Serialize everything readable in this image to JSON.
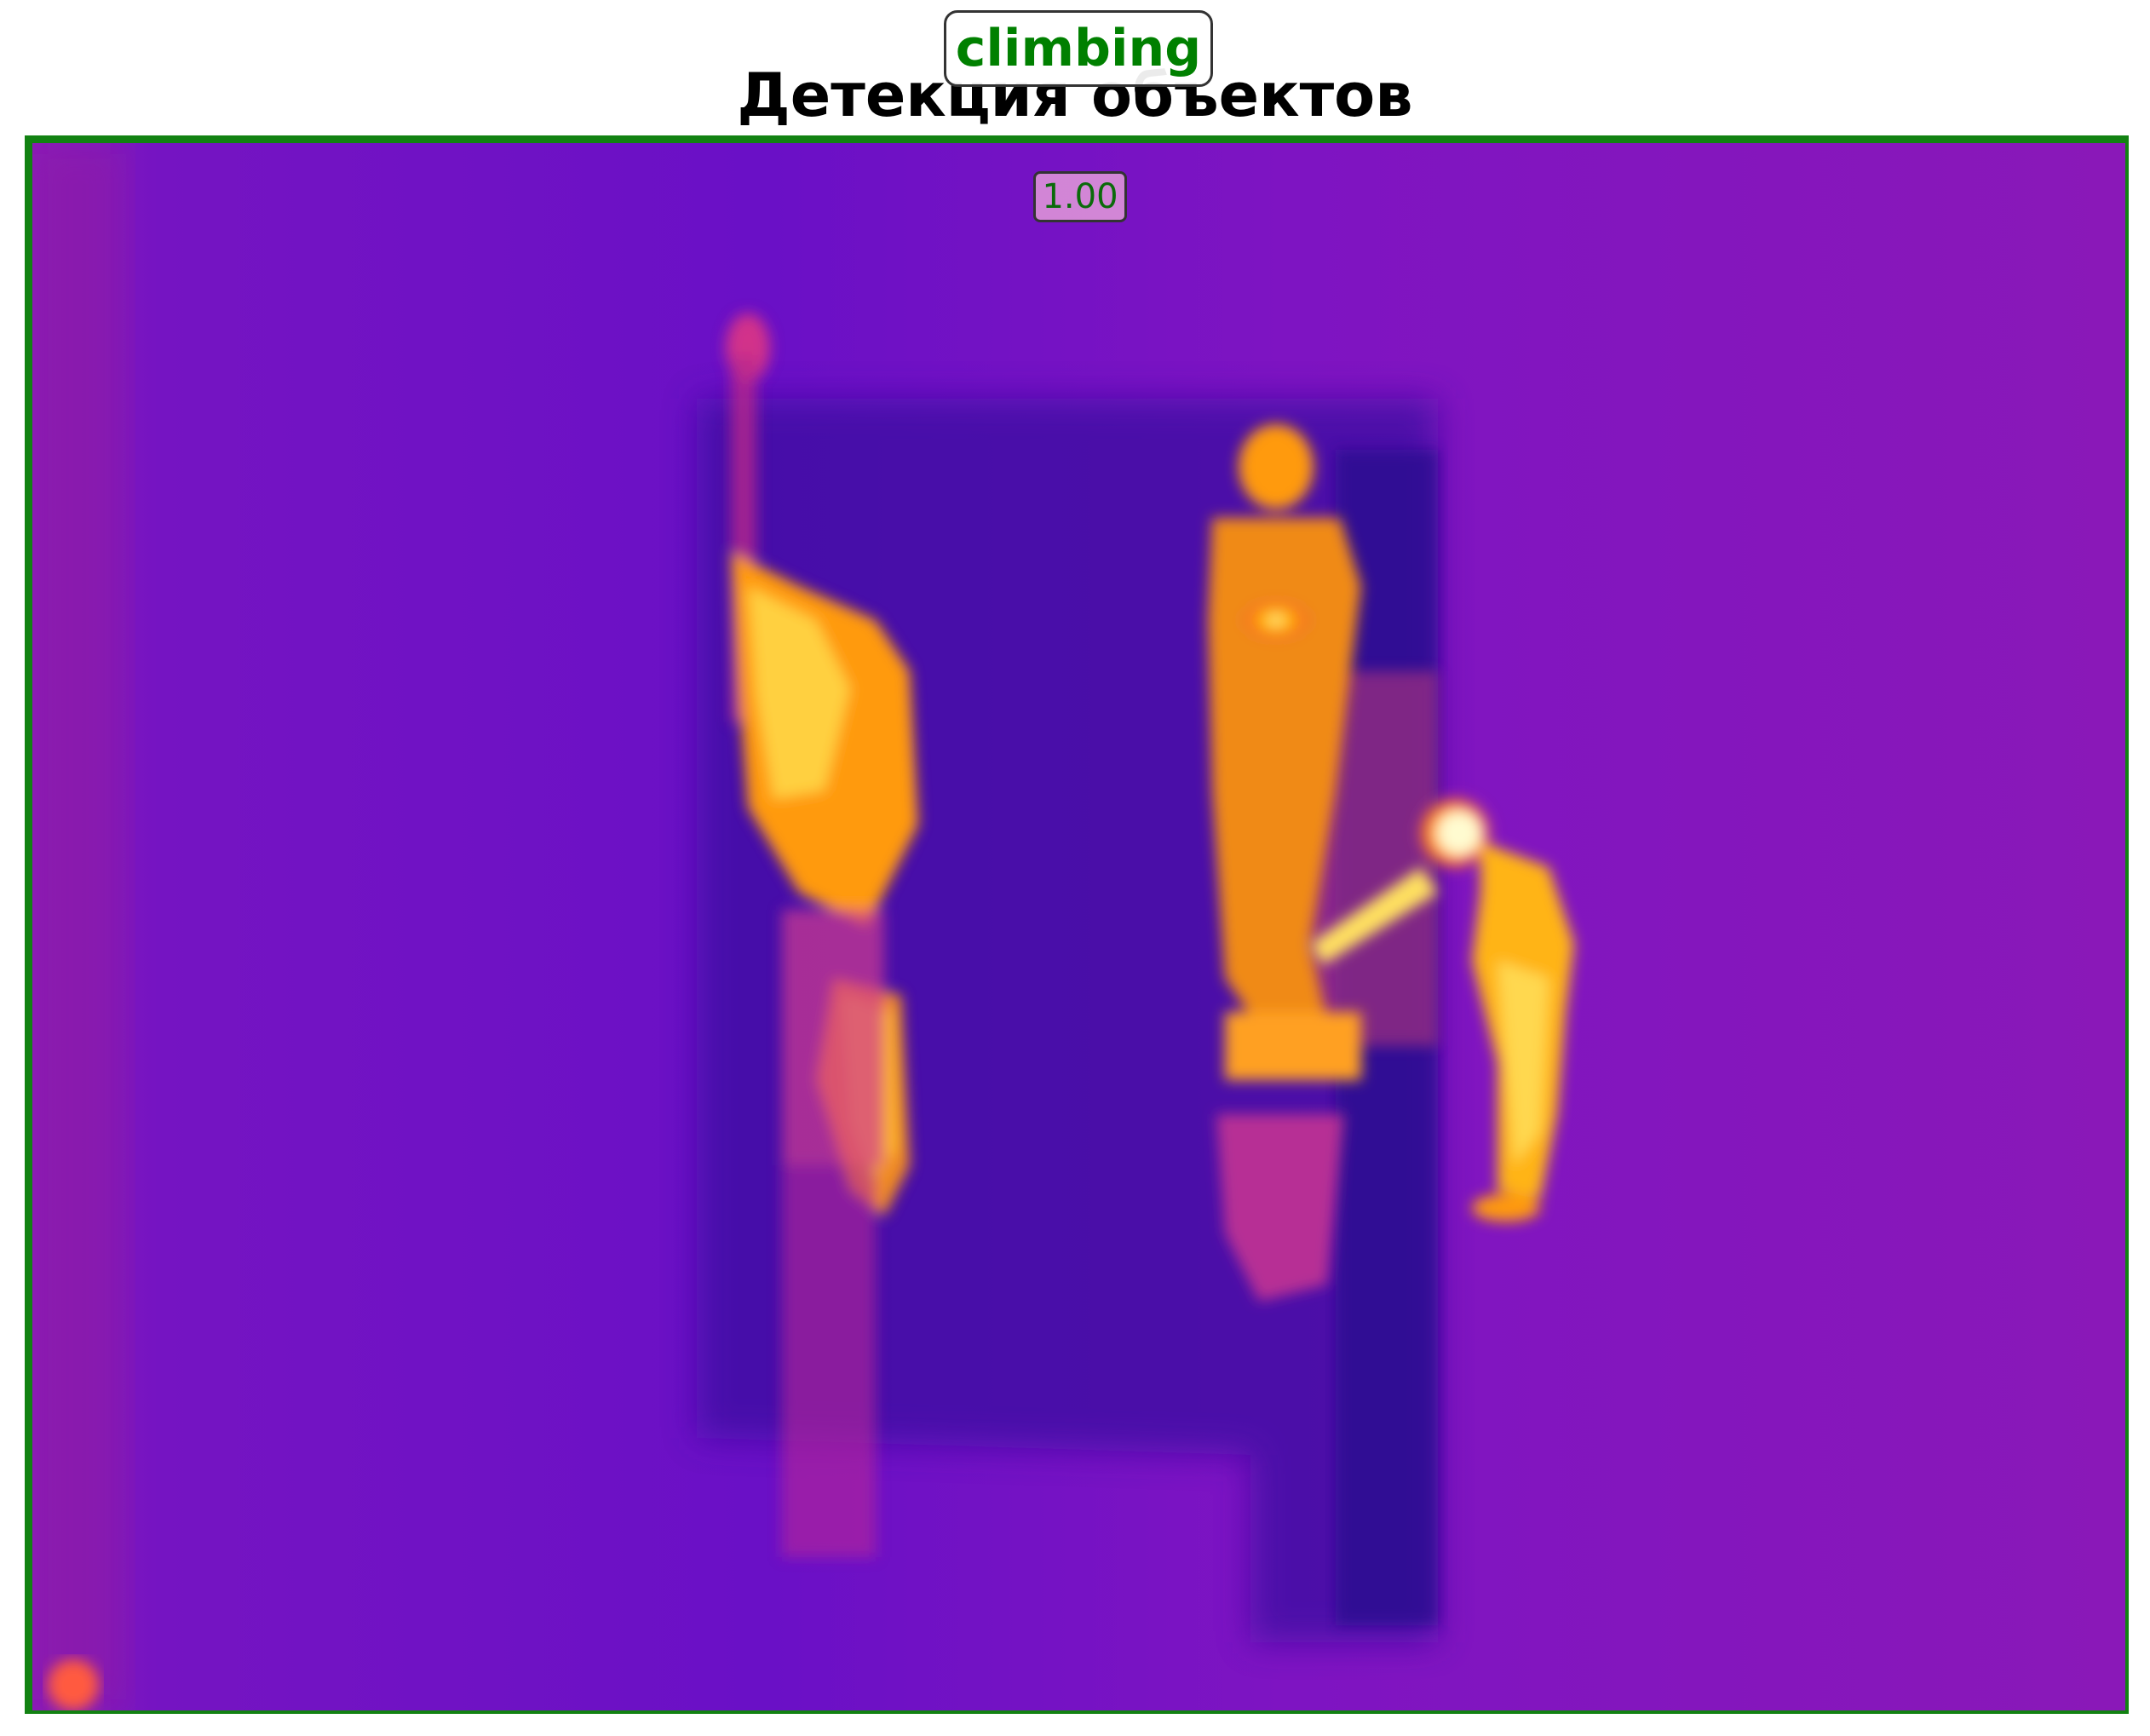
{
  "header": {
    "title": "Детекция объектов"
  },
  "detection": {
    "label": "climbing",
    "score": "1.00",
    "label_color": "#008000",
    "box_color": "#128212"
  },
  "image": {
    "palette": "thermal (inferno/plasma)",
    "background_color": "#7a12c8",
    "hot_color": "#ffb400"
  }
}
